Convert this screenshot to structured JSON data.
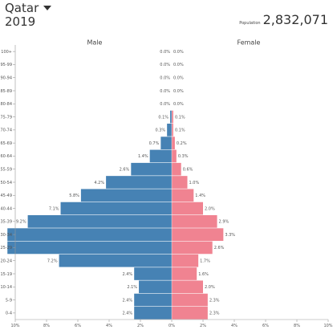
{
  "header": {
    "country": "Qatar",
    "year": "2019",
    "population_label": "Population",
    "population": "2,832,071"
  },
  "colors": {
    "male": "#4682b4",
    "female": "#f08391",
    "axis": "#999999"
  },
  "chart_data": {
    "type": "bar",
    "orientation": "horizontal-pyramid",
    "xlim": [
      -10,
      10
    ],
    "x_ticks": [
      "10%",
      "8%",
      "6%",
      "4%",
      "2%",
      "0%",
      "2%",
      "4%",
      "6%",
      "8%",
      "10%"
    ],
    "categories": [
      "100+",
      "95-99",
      "90-94",
      "85-89",
      "80-84",
      "75-79",
      "70-74",
      "65-69",
      "60-64",
      "55-59",
      "50-54",
      "45-49",
      "40-44",
      "35-39",
      "30-34",
      "25-29",
      "20-24",
      "15-19",
      "10-14",
      "5-9",
      "0-4"
    ],
    "series": [
      {
        "name": "Male",
        "values": [
          0.0,
          0.0,
          0.0,
          0.0,
          0.0,
          0.1,
          0.3,
          0.7,
          1.4,
          2.6,
          4.2,
          5.8,
          7.1,
          9.2,
          10.5,
          10.5,
          7.2,
          2.4,
          2.1,
          2.4,
          2.4
        ],
        "labels": [
          "0.0%",
          "0.0%",
          "0.0%",
          "0.0%",
          "0.0%",
          "0.1%",
          "0.3%",
          "0.7%",
          "1.4%",
          "2.6%",
          "4.2%",
          "5.8%",
          "7.1%",
          "9.2%",
          "",
          "",
          "7.2%",
          "2.4%",
          "2.1%",
          "2.4%",
          "2.4%"
        ]
      },
      {
        "name": "Female",
        "values": [
          0.0,
          0.0,
          0.0,
          0.0,
          0.0,
          0.1,
          0.1,
          0.2,
          0.3,
          0.6,
          1.0,
          1.4,
          2.0,
          2.9,
          3.3,
          2.6,
          1.7,
          1.6,
          2.0,
          2.3,
          2.3
        ],
        "labels": [
          "0.0%",
          "0.0%",
          "0.0%",
          "0.0%",
          "0.0%",
          "0.1%",
          "0.1%",
          "0.2%",
          "0.3%",
          "0.6%",
          "1.0%",
          "1.4%",
          "2.0%",
          "2.9%",
          "3.3%",
          "2.6%",
          "1.7%",
          "1.6%",
          "2.0%",
          "2.3%",
          "2.3%"
        ]
      }
    ]
  }
}
